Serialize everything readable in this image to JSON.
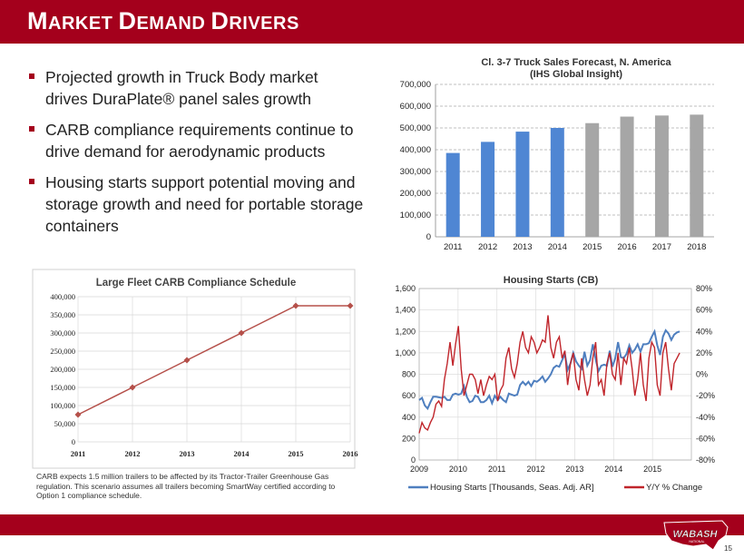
{
  "header": {
    "title_parts": [
      {
        "cap": "M",
        "rest": "ARKET "
      },
      {
        "cap": "D",
        "rest": "EMAND "
      },
      {
        "cap": "D",
        "rest": "RIVERS"
      }
    ]
  },
  "bullets": [
    "Projected growth in Truck Body market drives DuraPlate® panel sales growth",
    "CARB compliance requirements continue to drive demand for aerodynamic products",
    "Housing starts support potential moving and storage growth and need for portable storage containers"
  ],
  "chart_data": [
    {
      "type": "bar",
      "title": "Cl. 3-7 Truck Sales Forecast, N. America",
      "subtitle": "(IHS Global Insight)",
      "categories": [
        "2011",
        "2012",
        "2013",
        "2014",
        "2015",
        "2016",
        "2017",
        "2018"
      ],
      "values": [
        385000,
        436000,
        483000,
        500000,
        522000,
        552000,
        557000,
        561000
      ],
      "colors": [
        "#4f86d3",
        "#4f86d3",
        "#4f86d3",
        "#4f86d3",
        "#a6a6a6",
        "#a6a6a6",
        "#a6a6a6",
        "#a6a6a6"
      ],
      "ylim": [
        0,
        700000
      ],
      "yticks": [
        "0",
        "100,000",
        "200,000",
        "300,000",
        "400,000",
        "500,000",
        "600,000",
        "700,000"
      ],
      "grid": true
    },
    {
      "type": "line",
      "title": "Large Fleet CARB Compliance Schedule",
      "categories": [
        "2011",
        "2012",
        "2013",
        "2014",
        "2015",
        "2016"
      ],
      "values": [
        75000,
        150000,
        225000,
        300000,
        375000,
        375000
      ],
      "color": "#b5504a",
      "ylim": [
        0,
        400000
      ],
      "yticks": [
        "0",
        "50,000",
        "100,000",
        "150,000",
        "200,000",
        "250,000",
        "300,000",
        "350,000",
        "400,000"
      ],
      "note": "CARB expects 1.5 million trailers to be affected by its Tractor-Trailer Greenhouse Gas regulation. This scenario assumes all trailers becoming SmartWay certified according to Option 1 compliance schedule."
    },
    {
      "type": "line",
      "title": "Housing Starts (CB)",
      "x_start": 2009,
      "x_end": 2016,
      "xticks": [
        "2009",
        "2010",
        "2011",
        "2012",
        "2013",
        "2014",
        "2015"
      ],
      "ylim_left": [
        0,
        1600
      ],
      "yticks_left": [
        "0",
        "200",
        "400",
        "600",
        "800",
        "1,000",
        "1,200",
        "1,400",
        "1,600"
      ],
      "ylim_right": [
        -80,
        80
      ],
      "yticks_right": [
        "-80%",
        "-60%",
        "-40%",
        "-20%",
        "0%",
        "20%",
        "40%",
        "60%",
        "80%"
      ],
      "series": [
        {
          "name": "Housing Starts [Thousands, Seas. Adj. AR]",
          "axis": "left",
          "color": "#4f7fbf",
          "values": [
            560,
            580,
            510,
            480,
            540,
            590,
            590,
            585,
            580,
            590,
            560,
            560,
            610,
            620,
            610,
            620,
            690,
            590,
            540,
            550,
            600,
            590,
            540,
            540,
            560,
            600,
            530,
            600,
            560,
            590,
            560,
            540,
            620,
            610,
            600,
            610,
            700,
            730,
            700,
            730,
            690,
            740,
            730,
            750,
            780,
            730,
            760,
            800,
            860,
            880,
            870,
            930,
            990,
            840,
            900,
            1000,
            920,
            880,
            850,
            1010,
            880,
            930,
            1080,
            940,
            830,
            880,
            890,
            880,
            1020,
            870,
            950,
            1100,
            960,
            950,
            990,
            1070,
            1000,
            1030,
            1080,
            1010,
            1080,
            1080,
            1090,
            1150,
            1200,
            1070,
            980,
            1150,
            1210,
            1180,
            1120,
            1170,
            1190,
            1200
          ]
        },
        {
          "name": "Y/Y % Change",
          "axis": "right",
          "color": "#c0252b",
          "values": [
            -55,
            -45,
            -50,
            -52,
            -45,
            -40,
            -28,
            -25,
            -30,
            -5,
            10,
            30,
            8,
            28,
            45,
            5,
            -20,
            -10,
            0,
            0,
            -5,
            -18,
            -5,
            -20,
            -10,
            -2,
            -5,
            0,
            -25,
            -15,
            -10,
            15,
            25,
            5,
            -3,
            10,
            30,
            40,
            25,
            20,
            35,
            30,
            20,
            25,
            32,
            30,
            55,
            25,
            15,
            30,
            35,
            15,
            22,
            -10,
            10,
            20,
            -5,
            -15,
            15,
            -5,
            -20,
            -10,
            15,
            30,
            -10,
            -5,
            -20,
            10,
            20,
            0,
            -5,
            20,
            -10,
            15,
            10,
            25,
            5,
            -20,
            -5,
            20,
            -10,
            -25,
            15,
            30,
            25,
            -10,
            -20,
            20,
            30,
            5,
            -15,
            10,
            15,
            20
          ]
        }
      ]
    }
  ],
  "footer": {
    "logo_text": "WABASH",
    "logo_sub": "NATIONAL",
    "page_number": "15"
  },
  "colors": {
    "brand_red": "#a4001c",
    "bar_blue": "#4f86d3",
    "bar_gray": "#a6a6a6"
  }
}
